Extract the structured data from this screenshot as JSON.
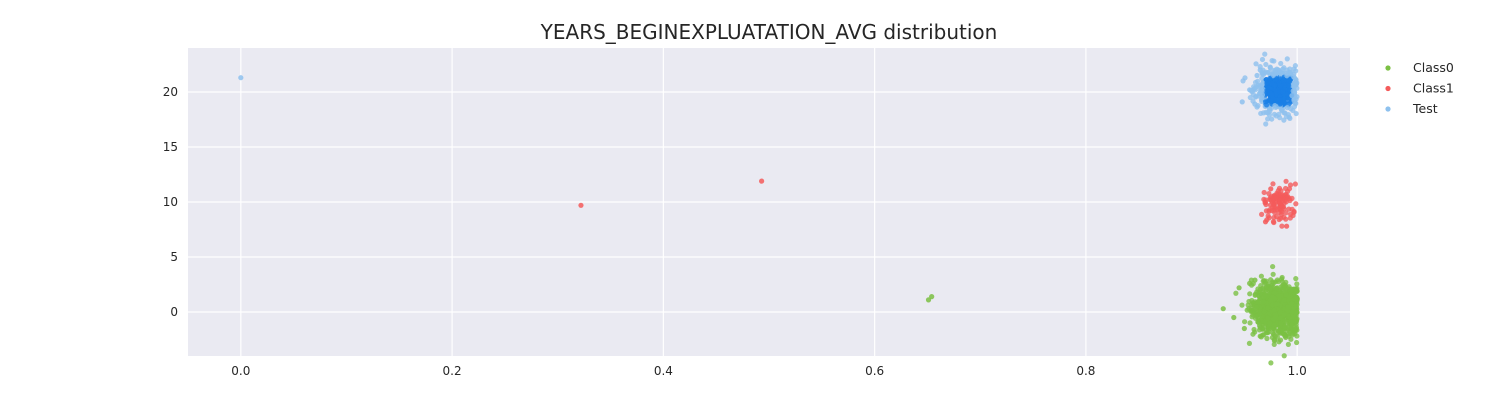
{
  "chart_data": {
    "type": "scatter",
    "title": "YEARS_BEGINEXPLUATATION_AVG distribution",
    "xlabel": "",
    "ylabel": "",
    "xlim": [
      -0.05,
      1.05
    ],
    "ylim": [
      -4,
      24
    ],
    "xticks": [
      0.0,
      0.2,
      0.4,
      0.6,
      0.8,
      1.0
    ],
    "xtick_labels": [
      "0.0",
      "0.2",
      "0.4",
      "0.6",
      "0.8",
      "1.0"
    ],
    "yticks": [
      0,
      5,
      10,
      15,
      20
    ],
    "ytick_labels": [
      "0",
      "5",
      "10",
      "15",
      "20"
    ],
    "grid": true,
    "legend_position": "outside-top-right",
    "series": [
      {
        "name": "Class0",
        "color": "#7bc043",
        "y_offset": 0,
        "outliers": [
          [
            0.651,
            1.1
          ],
          [
            0.654,
            1.4
          ],
          [
            0.93,
            0.3
          ],
          [
            0.94,
            -0.5
          ],
          [
            0.945,
            2.2
          ],
          [
            0.955,
            2.6
          ],
          [
            0.96,
            2.9
          ],
          [
            0.95,
            -1.5
          ],
          [
            0.965,
            -2.2
          ]
        ],
        "cluster": {
          "x_center": 0.982,
          "x_spread": 0.012,
          "y_center": 0.2,
          "y_spread": 1.2,
          "count": 900,
          "x_max": 1.0
        }
      },
      {
        "name": "Class1",
        "color": "#f45b5b",
        "y_offset": 10,
        "outliers": [
          [
            0.322,
            9.7
          ],
          [
            0.493,
            11.9
          ],
          [
            0.97,
            8.2
          ],
          [
            0.975,
            11.2
          ],
          [
            0.99,
            7.8
          ]
        ],
        "cluster": {
          "x_center": 0.982,
          "x_spread": 0.007,
          "y_center": 9.9,
          "y_spread": 0.8,
          "count": 110,
          "x_max": 1.0
        }
      },
      {
        "name": "Test",
        "color": "#8ec1ee",
        "dense_color": "#1a80e6",
        "y_offset": 20,
        "outliers": [
          [
            0.0,
            21.3
          ],
          [
            0.948,
            19.1
          ],
          [
            0.955,
            20.2
          ],
          [
            0.96,
            18.9
          ],
          [
            0.962,
            21.5
          ],
          [
            0.965,
            22.0
          ]
        ],
        "cluster": {
          "x_center": 0.982,
          "x_spread": 0.01,
          "y_center": 20.1,
          "y_spread": 1.0,
          "count": 500,
          "x_max": 1.0
        }
      }
    ]
  }
}
